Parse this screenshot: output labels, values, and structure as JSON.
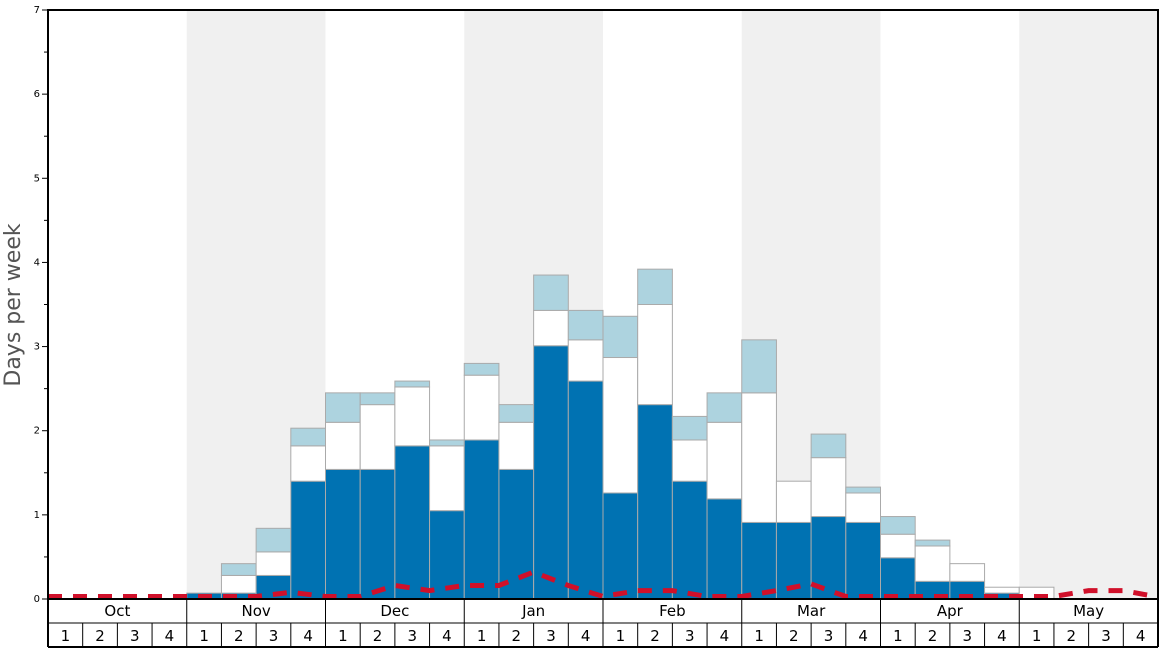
{
  "chart_data": {
    "type": "bar",
    "ylabel": "Days per week",
    "xlabel": "",
    "title": "",
    "ylim": [
      0,
      7
    ],
    "yticks": [
      "0",
      "1",
      "2",
      "3",
      "4",
      "5",
      "6",
      "7"
    ],
    "months": [
      "Oct",
      "Nov",
      "Dec",
      "Jan",
      "Feb",
      "Mar",
      "Apr",
      "May"
    ],
    "weeks_per_month": [
      "1",
      "2",
      "3",
      "4"
    ],
    "colors": {
      "base": "#0072b2",
      "middle": "#ffffff",
      "top": "#add3df",
      "line": "#d0102a",
      "band": "#f0f0f0",
      "bar_stroke": "#aaaaaa"
    },
    "stacks": [
      {
        "name": "base",
        "values": [
          0,
          0,
          0,
          0,
          0.07,
          0.07,
          0.28,
          1.4,
          1.54,
          1.54,
          1.82,
          1.05,
          1.89,
          1.54,
          3.01,
          2.59,
          1.26,
          2.31,
          1.4,
          1.19,
          0.91,
          0.91,
          0.98,
          0.91,
          0.49,
          0.21,
          0.21,
          0.07,
          0,
          0,
          0,
          0
        ]
      },
      {
        "name": "middle",
        "values": [
          0,
          0,
          0,
          0,
          0,
          0.21,
          0.28,
          0.42,
          0.56,
          0.77,
          0.7,
          0.77,
          0.77,
          0.56,
          0.42,
          0.49,
          1.61,
          1.19,
          0.49,
          0.91,
          1.54,
          0.49,
          0.7,
          0.35,
          0.28,
          0.42,
          0.21,
          0.07,
          0.14,
          0,
          0,
          0
        ]
      },
      {
        "name": "top",
        "values": [
          0,
          0,
          0,
          0,
          0,
          0.14,
          0.28,
          0.21,
          0.35,
          0.14,
          0.07,
          0.07,
          0.14,
          0.21,
          0.42,
          0.35,
          0.49,
          0.42,
          0.28,
          0.35,
          0.63,
          0,
          0.28,
          0.07,
          0.21,
          0.07,
          0,
          0,
          0,
          0,
          0,
          0
        ]
      }
    ],
    "line": {
      "name": "",
      "values": [
        0.03,
        0.03,
        0.03,
        0.03,
        0.03,
        0.03,
        0.03,
        0.08,
        0.03,
        0.03,
        0.16,
        0.1,
        0.16,
        0.16,
        0.32,
        0.16,
        0.03,
        0.1,
        0.1,
        0.03,
        0.03,
        0.1,
        0.18,
        0.03,
        0.03,
        0.03,
        0.03,
        0.03,
        0.03,
        0.03,
        0.1,
        0.1,
        0.01
      ]
    }
  }
}
